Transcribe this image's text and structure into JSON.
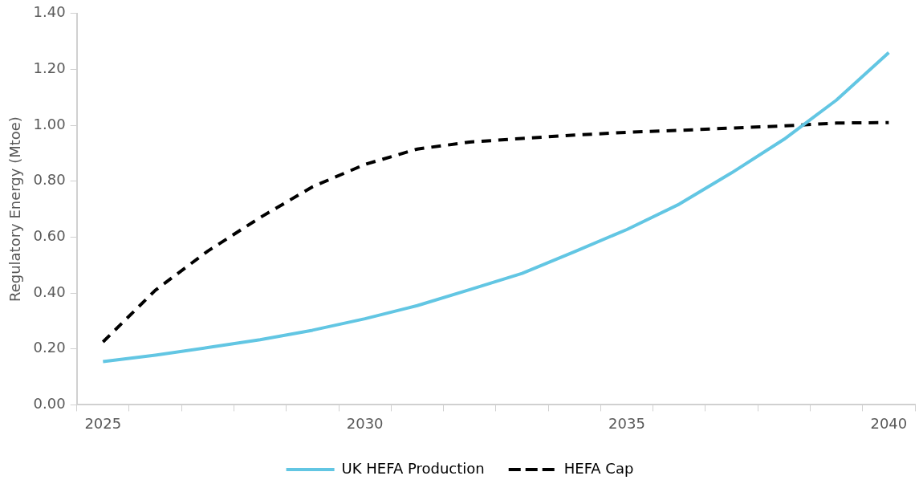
{
  "chart_data": {
    "type": "line",
    "ylabel": "Regulatory Energy (Mtoe)",
    "categories": [
      "2025",
      null,
      null,
      null,
      null,
      "2030",
      null,
      null,
      null,
      null,
      "2035",
      null,
      null,
      null,
      null,
      "2040"
    ],
    "series": [
      {
        "name": "UK HEFA Production",
        "color": "#62c6e3",
        "line_style": "solid",
        "values": [
          0.155,
          0.178,
          0.205,
          0.233,
          0.267,
          0.308,
          0.355,
          0.412,
          0.47,
          0.548,
          0.627,
          0.718,
          0.83,
          0.95,
          1.09,
          1.26
        ]
      },
      {
        "name": "HEFA Cap",
        "color": "#000000",
        "line_style": "dashed",
        "values": [
          0.225,
          0.41,
          0.55,
          0.67,
          0.78,
          0.86,
          0.915,
          0.94,
          0.953,
          0.965,
          0.975,
          0.982,
          0.99,
          0.998,
          1.008,
          1.01
        ]
      }
    ],
    "ylim": [
      0,
      1.4
    ],
    "yticks": [
      {
        "value": 0,
        "label": "0.00"
      },
      {
        "value": 0.2,
        "label": "0.20"
      },
      {
        "value": 0.4,
        "label": "0.40"
      },
      {
        "value": 0.6,
        "label": "0.60"
      },
      {
        "value": 0.8,
        "label": "0.80"
      },
      {
        "value": 1,
        "label": "1.00"
      },
      {
        "value": 1.2,
        "label": "1.20"
      },
      {
        "value": 1.4,
        "label": "1.40"
      }
    ],
    "grid": false,
    "legend": "bottom",
    "marker": "none"
  }
}
